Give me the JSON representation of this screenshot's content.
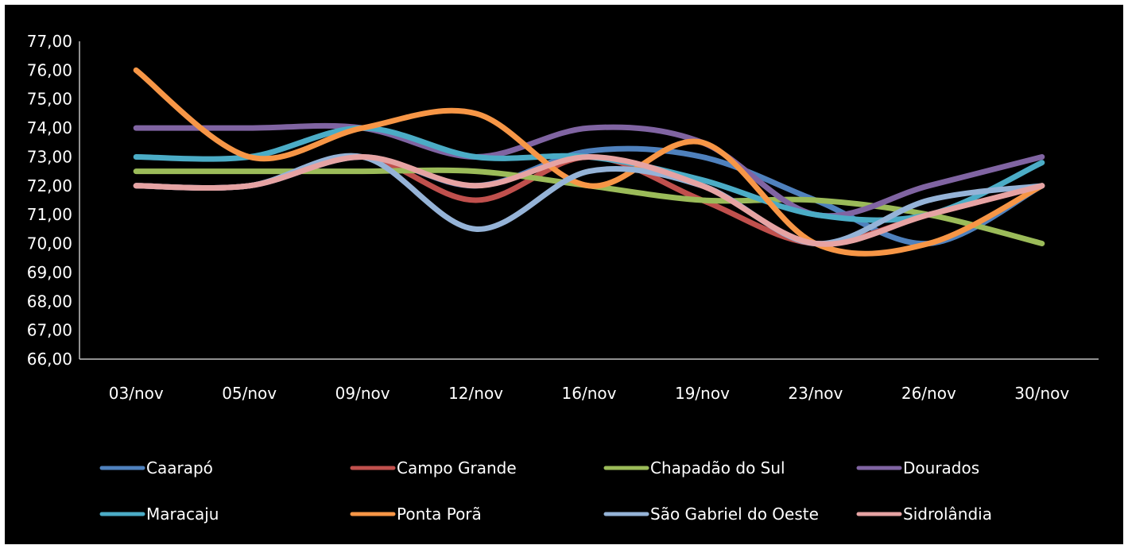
{
  "chart_data": {
    "type": "line",
    "title": "",
    "xlabel": "",
    "ylabel": "",
    "categories": [
      "03/nov",
      "05/nov",
      "09/nov",
      "12/nov",
      "16/nov",
      "19/nov",
      "23/nov",
      "26/nov",
      "30/nov"
    ],
    "ylim": [
      66,
      77
    ],
    "yticks": [
      "66,00",
      "67,00",
      "68,00",
      "69,00",
      "70,00",
      "71,00",
      "72,00",
      "73,00",
      "74,00",
      "75,00",
      "76,00",
      "77,00"
    ],
    "grid": false,
    "legend_position": "bottom",
    "series": [
      {
        "name": "Caarapó",
        "color": "#4F81BD",
        "values": [
          72,
          72,
          73,
          72,
          73.2,
          73,
          71.5,
          70,
          72
        ]
      },
      {
        "name": "Campo Grande",
        "color": "#C0504D",
        "values": [
          72,
          72,
          73,
          71.5,
          73,
          71.5,
          70,
          71,
          72
        ]
      },
      {
        "name": "Chapadão do Sul",
        "color": "#9BBB59",
        "values": [
          72.5,
          72.5,
          72.5,
          72.5,
          72,
          71.5,
          71.5,
          71,
          70
        ]
      },
      {
        "name": "Dourados",
        "color": "#8064A2",
        "values": [
          74,
          74,
          74,
          73,
          74,
          73.5,
          71,
          72,
          73
        ]
      },
      {
        "name": "Maracaju",
        "color": "#4BACC6",
        "values": [
          73,
          73,
          74,
          73,
          73,
          72.2,
          71,
          71,
          72.8
        ]
      },
      {
        "name": "Ponta Porã",
        "color": "#F79646",
        "values": [
          76,
          73,
          74,
          74.5,
          72,
          73.5,
          70,
          70,
          72
        ]
      },
      {
        "name": "São Gabriel do Oeste",
        "color": "#95B3D7",
        "values": [
          72,
          72,
          73,
          70.5,
          72.5,
          72,
          70,
          71.5,
          72
        ]
      },
      {
        "name": "Sidrolândia",
        "color": "#E6A3A3",
        "values": [
          72,
          72,
          73,
          72,
          73,
          72,
          70,
          71,
          72
        ]
      }
    ]
  }
}
